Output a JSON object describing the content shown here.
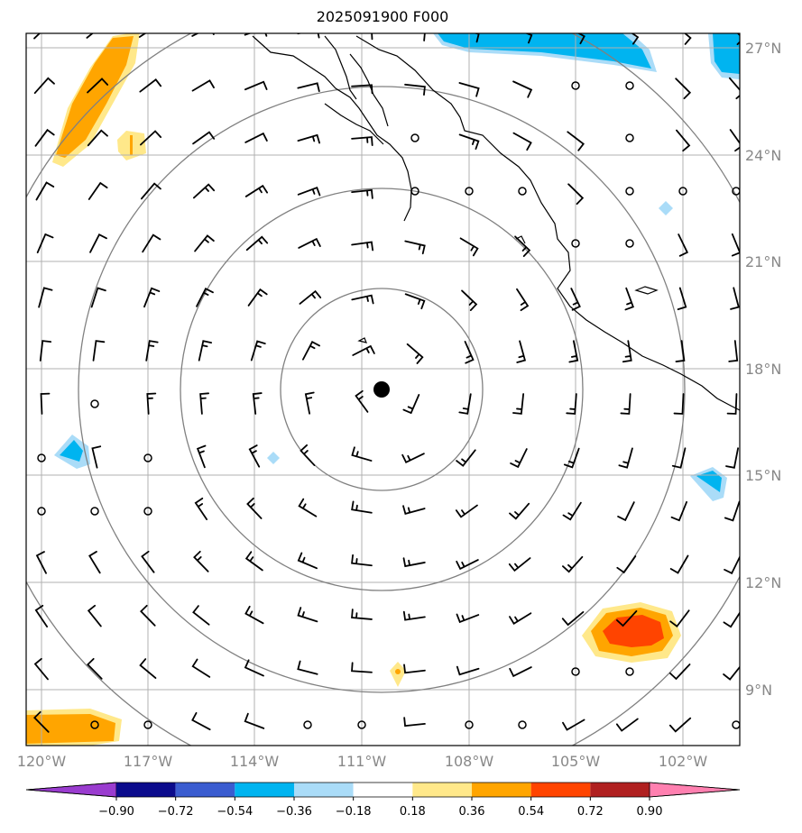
{
  "title": "2025091900 F000",
  "lon_labels": [
    "120°W",
    "117°W",
    "114°W",
    "111°W",
    "108°W",
    "105°W",
    "102°W"
  ],
  "lat_labels": [
    "27°N",
    "24°N",
    "21°N",
    "18°N",
    "15°N",
    "12°N",
    "9°N"
  ],
  "colorbar": {
    "labels": [
      "−0.90",
      "−0.72",
      "−0.54",
      "−0.36",
      "−0.18",
      "0.18",
      "0.36",
      "0.54",
      "0.72",
      "0.90"
    ],
    "colors": [
      "#9a3ccf",
      "#0b0b8c",
      "#3a5cd0",
      "#00b4f0",
      "#aadcf8",
      "#ffffff",
      "#ffe88a",
      "#ffa500",
      "#ff4400",
      "#b02020",
      "#ff80b0"
    ]
  },
  "map": {
    "center_marker": "storm-center",
    "range_rings": 4,
    "colors": {
      "grid": "#b0b0b0",
      "ring": "#808080",
      "coast": "#000000"
    }
  }
}
